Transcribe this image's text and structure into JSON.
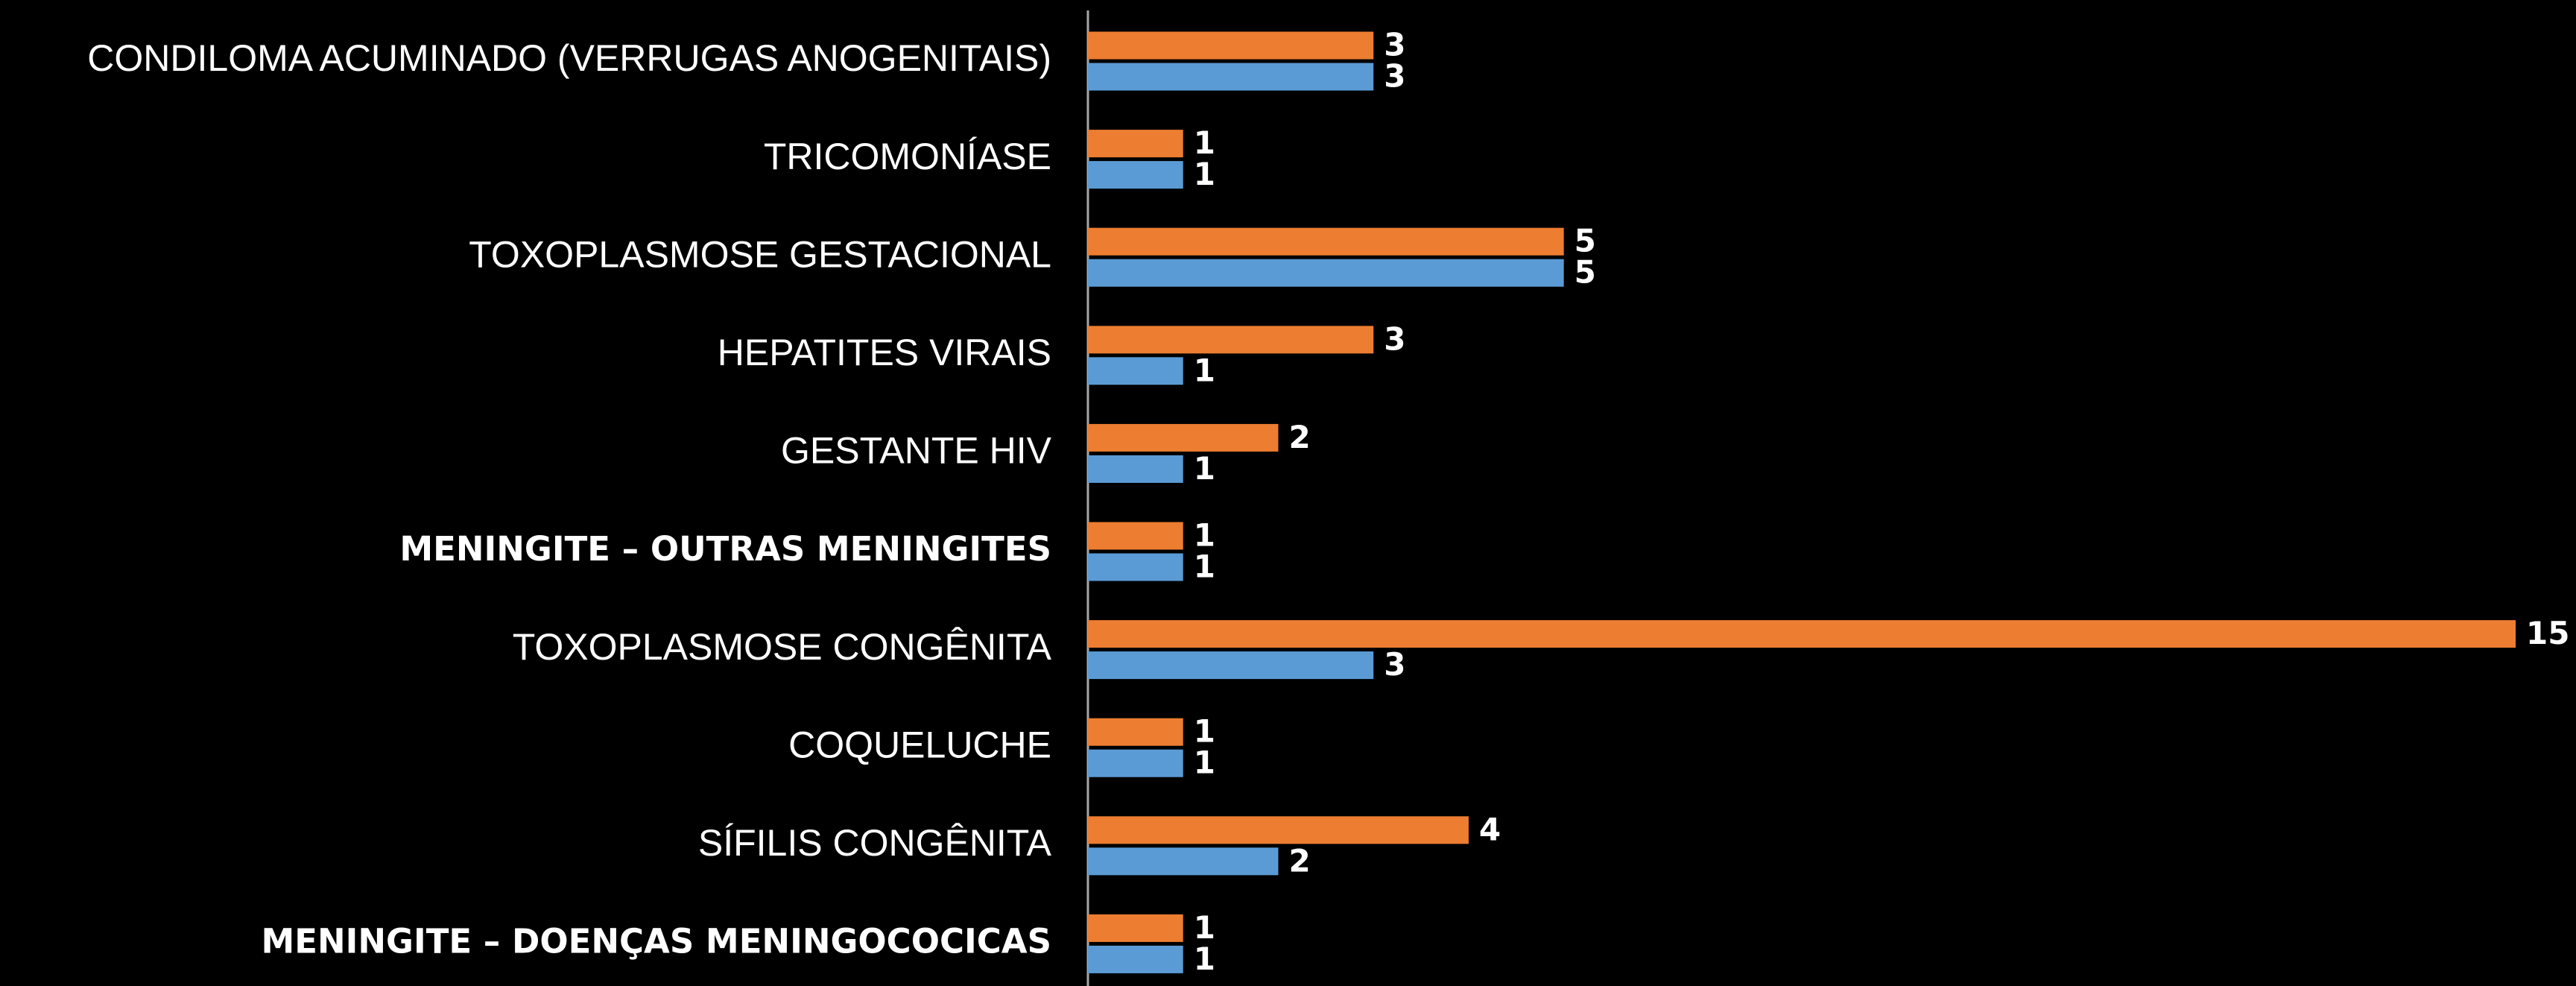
{
  "chart_data": {
    "type": "hbar",
    "categories": [
      "CONDILOMA ACUMINADO (VERRUGAS ANOGENITAIS)",
      "TRICOMONÍASE",
      "TOXOPLASMOSE GESTACIONAL",
      "HEPATITES VIRAIS",
      "GESTANTE HIV",
      "MENINGITE – OUTRAS MENINGITES",
      "TOXOPLASMOSE CONGÊNITA",
      "COQUELUCHE",
      "SÍFILIS CONGÊNITA",
      "MENINGITE – DOENÇAS MENINGOCOCICAS"
    ],
    "series": [
      {
        "color": "#ED7D31",
        "values": [
          3,
          1,
          5,
          3,
          2,
          1,
          15,
          1,
          4,
          1
        ]
      },
      {
        "color": "#5B9BD5",
        "values": [
          3,
          1,
          5,
          1,
          1,
          1,
          3,
          1,
          2,
          1
        ]
      }
    ],
    "xlim": [
      0,
      15
    ]
  }
}
